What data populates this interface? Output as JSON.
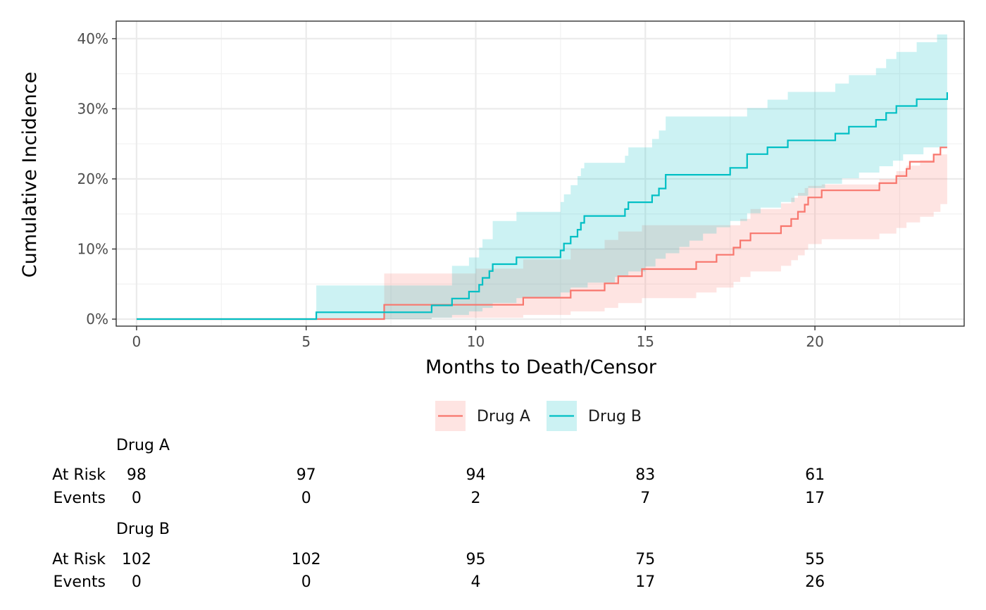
{
  "chart_data": {
    "type": "line",
    "subtype": "cumulative-incidence-step",
    "xlabel": "Months to Death/Censor",
    "ylabel": "Cumulative Incidence",
    "xlim": [
      -0.6,
      24.4
    ],
    "ylim": [
      -0.01,
      0.425
    ],
    "x_ticks": [
      0,
      5,
      10,
      15,
      20
    ],
    "y_ticks": [
      0,
      0.1,
      0.2,
      0.3,
      0.4
    ],
    "y_tick_labels": [
      "0%",
      "10%",
      "20%",
      "30%",
      "40%"
    ],
    "grid": true,
    "legend_position": "bottom",
    "series": [
      {
        "name": "Drug A",
        "color": "#F8766D",
        "fill": "#F8766D",
        "steps": [
          [
            0,
            0
          ],
          [
            7.3,
            0.0204
          ],
          [
            10.0,
            0.0204
          ],
          [
            11.4,
            0.0306
          ],
          [
            12.8,
            0.0408
          ],
          [
            13.8,
            0.051
          ],
          [
            14.2,
            0.0612
          ],
          [
            14.9,
            0.0714
          ],
          [
            16.5,
            0.0816
          ],
          [
            17.1,
            0.0918
          ],
          [
            17.6,
            0.102
          ],
          [
            17.8,
            0.1122
          ],
          [
            18.1,
            0.1224
          ],
          [
            19.0,
            0.1327
          ],
          [
            19.3,
            0.1429
          ],
          [
            19.5,
            0.1531
          ],
          [
            19.7,
            0.1633
          ],
          [
            19.8,
            0.1735
          ],
          [
            20.2,
            0.1837
          ],
          [
            21.9,
            0.1939
          ],
          [
            22.4,
            0.2041
          ],
          [
            22.7,
            0.2143
          ],
          [
            22.8,
            0.2245
          ],
          [
            23.5,
            0.2347
          ],
          [
            23.7,
            0.2449
          ],
          [
            23.9,
            0.2449
          ]
        ],
        "lower": [
          [
            0,
            0
          ],
          [
            7.3,
            0
          ],
          [
            8.7,
            0.002
          ],
          [
            10.0,
            0.002
          ],
          [
            11.4,
            0.006
          ],
          [
            12.8,
            0.011
          ],
          [
            13.8,
            0.016
          ],
          [
            14.2,
            0.023
          ],
          [
            14.9,
            0.03
          ],
          [
            16.5,
            0.038
          ],
          [
            17.1,
            0.045
          ],
          [
            17.6,
            0.053
          ],
          [
            17.8,
            0.06
          ],
          [
            18.1,
            0.068
          ],
          [
            19.0,
            0.076
          ],
          [
            19.3,
            0.084
          ],
          [
            19.5,
            0.091
          ],
          [
            19.7,
            0.099
          ],
          [
            19.8,
            0.107
          ],
          [
            20.2,
            0.114
          ],
          [
            21.9,
            0.122
          ],
          [
            22.4,
            0.13
          ],
          [
            22.7,
            0.138
          ],
          [
            23.1,
            0.146
          ],
          [
            23.5,
            0.153
          ],
          [
            23.7,
            0.164
          ],
          [
            23.9,
            0.164
          ]
        ],
        "upper": [
          [
            0,
            0
          ],
          [
            7.3,
            0.065
          ],
          [
            8.7,
            0.065
          ],
          [
            10.0,
            0.072
          ],
          [
            11.4,
            0.085
          ],
          [
            12.8,
            0.1
          ],
          [
            13.8,
            0.113
          ],
          [
            14.2,
            0.125
          ],
          [
            14.9,
            0.134
          ],
          [
            16.5,
            0.134
          ],
          [
            17.1,
            0.134
          ],
          [
            17.6,
            0.134
          ],
          [
            17.8,
            0.143
          ],
          [
            18.1,
            0.157
          ],
          [
            19.0,
            0.165
          ],
          [
            19.3,
            0.173
          ],
          [
            19.5,
            0.18
          ],
          [
            19.7,
            0.187
          ],
          [
            19.8,
            0.19
          ],
          [
            20.2,
            0.192
          ],
          [
            21.9,
            0.2
          ],
          [
            22.4,
            0.211
          ],
          [
            22.7,
            0.219
          ],
          [
            23.1,
            0.227
          ],
          [
            23.5,
            0.234
          ],
          [
            23.7,
            0.235
          ],
          [
            23.9,
            0.235
          ]
        ]
      },
      {
        "name": "Drug B",
        "color": "#00BFC4",
        "fill": "#00BFC4",
        "steps": [
          [
            0,
            0
          ],
          [
            5.3,
            0.0098
          ],
          [
            8.7,
            0.0196
          ],
          [
            9.3,
            0.0294
          ],
          [
            9.8,
            0.0392
          ],
          [
            10.1,
            0.049
          ],
          [
            10.2,
            0.0588
          ],
          [
            10.4,
            0.0686
          ],
          [
            10.5,
            0.0784
          ],
          [
            11.2,
            0.0882
          ],
          [
            12.5,
            0.098
          ],
          [
            12.6,
            0.1078
          ],
          [
            12.8,
            0.1176
          ],
          [
            13.0,
            0.1275
          ],
          [
            13.1,
            0.1373
          ],
          [
            13.2,
            0.1471
          ],
          [
            14.4,
            0.1569
          ],
          [
            14.5,
            0.1667
          ],
          [
            15.2,
            0.1765
          ],
          [
            15.4,
            0.1863
          ],
          [
            15.6,
            0.2059
          ],
          [
            17.5,
            0.2157
          ],
          [
            18.0,
            0.2353
          ],
          [
            18.6,
            0.2451
          ],
          [
            19.2,
            0.2549
          ],
          [
            20.6,
            0.2647
          ],
          [
            21.0,
            0.2745
          ],
          [
            21.8,
            0.2843
          ],
          [
            22.1,
            0.2941
          ],
          [
            22.4,
            0.3039
          ],
          [
            23.0,
            0.3137
          ],
          [
            23.9,
            0.3235
          ]
        ],
        "lower": [
          [
            0,
            0
          ],
          [
            8.7,
            0.002
          ],
          [
            9.3,
            0.006
          ],
          [
            9.8,
            0.011
          ],
          [
            10.2,
            0.016
          ],
          [
            10.5,
            0.023
          ],
          [
            11.2,
            0.03
          ],
          [
            12.5,
            0.038
          ],
          [
            12.8,
            0.045
          ],
          [
            13.3,
            0.052
          ],
          [
            14.1,
            0.06
          ],
          [
            14.5,
            0.068
          ],
          [
            15.0,
            0.075
          ],
          [
            15.3,
            0.086
          ],
          [
            15.6,
            0.094
          ],
          [
            16.0,
            0.103
          ],
          [
            16.3,
            0.112
          ],
          [
            16.7,
            0.122
          ],
          [
            17.1,
            0.131
          ],
          [
            17.5,
            0.14
          ],
          [
            18.0,
            0.151
          ],
          [
            18.4,
            0.159
          ],
          [
            19.0,
            0.167
          ],
          [
            19.4,
            0.176
          ],
          [
            19.8,
            0.187
          ],
          [
            20.3,
            0.193
          ],
          [
            20.8,
            0.201
          ],
          [
            21.3,
            0.209
          ],
          [
            21.9,
            0.218
          ],
          [
            22.3,
            0.226
          ],
          [
            22.6,
            0.235
          ],
          [
            23.2,
            0.245
          ],
          [
            23.9,
            0.245
          ]
        ],
        "upper": [
          [
            0,
            0
          ],
          [
            5.3,
            0.048
          ],
          [
            7.4,
            0.048
          ],
          [
            9.3,
            0.076
          ],
          [
            9.8,
            0.088
          ],
          [
            10.1,
            0.102
          ],
          [
            10.2,
            0.114
          ],
          [
            10.5,
            0.14
          ],
          [
            11.2,
            0.153
          ],
          [
            12.5,
            0.167
          ],
          [
            12.6,
            0.178
          ],
          [
            12.8,
            0.191
          ],
          [
            13.0,
            0.204
          ],
          [
            13.1,
            0.215
          ],
          [
            13.2,
            0.223
          ],
          [
            14.4,
            0.233
          ],
          [
            14.5,
            0.245
          ],
          [
            15.2,
            0.257
          ],
          [
            15.4,
            0.269
          ],
          [
            15.6,
            0.289
          ],
          [
            17.5,
            0.289
          ],
          [
            18.0,
            0.301
          ],
          [
            18.6,
            0.313
          ],
          [
            19.2,
            0.324
          ],
          [
            20.6,
            0.336
          ],
          [
            21.0,
            0.348
          ],
          [
            21.8,
            0.358
          ],
          [
            22.1,
            0.371
          ],
          [
            22.4,
            0.381
          ],
          [
            23.0,
            0.395
          ],
          [
            23.6,
            0.406
          ],
          [
            23.9,
            0.406
          ]
        ]
      }
    ],
    "risk_table": {
      "times": [
        0,
        5,
        10,
        15,
        20
      ],
      "row_labels": [
        "At Risk",
        "Events"
      ],
      "groups": [
        {
          "name": "Drug A",
          "at_risk": [
            "98",
            "97",
            "94",
            "83",
            "61"
          ],
          "events": [
            "0",
            "0",
            "2",
            "7",
            "17"
          ]
        },
        {
          "name": "Drug B",
          "at_risk": [
            "102",
            "102",
            "95",
            "75",
            "55"
          ],
          "events": [
            "0",
            "0",
            "4",
            "17",
            "26"
          ]
        }
      ]
    }
  }
}
